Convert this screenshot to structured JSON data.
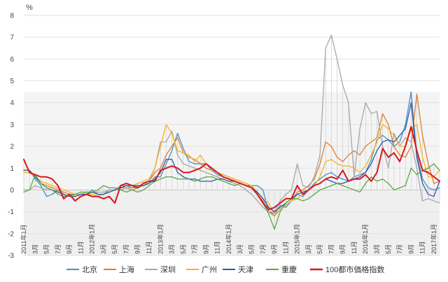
{
  "chart_data": {
    "type": "line",
    "ylabel": "%",
    "ylim": [
      -3,
      8
    ],
    "yticks": [
      -3,
      -2,
      -1,
      0,
      1,
      2,
      3,
      4,
      5,
      6,
      7,
      8
    ],
    "x_range": [
      0,
      73
    ],
    "x_ticks": [
      {
        "i": 0,
        "label": "2011年1月"
      },
      {
        "i": 2,
        "label": "3月"
      },
      {
        "i": 4,
        "label": "5月"
      },
      {
        "i": 6,
        "label": "7月"
      },
      {
        "i": 8,
        "label": "9月"
      },
      {
        "i": 10,
        "label": "11月"
      },
      {
        "i": 12,
        "label": "2012年1月"
      },
      {
        "i": 14,
        "label": "3月"
      },
      {
        "i": 16,
        "label": "5月"
      },
      {
        "i": 18,
        "label": "7月"
      },
      {
        "i": 20,
        "label": "9月"
      },
      {
        "i": 22,
        "label": "11月"
      },
      {
        "i": 24,
        "label": "2013年1月"
      },
      {
        "i": 26,
        "label": "3月"
      },
      {
        "i": 28,
        "label": "5月"
      },
      {
        "i": 30,
        "label": "7月"
      },
      {
        "i": 32,
        "label": "9月"
      },
      {
        "i": 34,
        "label": "11月"
      },
      {
        "i": 36,
        "label": "2014年1月"
      },
      {
        "i": 38,
        "label": "3月"
      },
      {
        "i": 40,
        "label": "5月"
      },
      {
        "i": 42,
        "label": "7月"
      },
      {
        "i": 44,
        "label": "9月"
      },
      {
        "i": 46,
        "label": "11月"
      },
      {
        "i": 48,
        "label": "2015年1月"
      },
      {
        "i": 50,
        "label": "3月"
      },
      {
        "i": 52,
        "label": "5月"
      },
      {
        "i": 54,
        "label": "7月"
      },
      {
        "i": 56,
        "label": "9月"
      },
      {
        "i": 58,
        "label": "11月"
      },
      {
        "i": 60,
        "label": "2016年1月"
      },
      {
        "i": 62,
        "label": "3月"
      },
      {
        "i": 64,
        "label": "5月"
      },
      {
        "i": 66,
        "label": "7月"
      },
      {
        "i": 68,
        "label": "9月"
      },
      {
        "i": 70,
        "label": "11月"
      },
      {
        "i": 72,
        "label": "2017年1月"
      }
    ],
    "legend_position": "bottom",
    "series": [
      {
        "name": "北京",
        "color": "#4a90c4",
        "width": 1.3,
        "values": [
          0.9,
          0.9,
          0.5,
          0.2,
          -0.3,
          -0.2,
          0.0,
          -0.2,
          -0.3,
          -0.2,
          -0.2,
          -0.2,
          0.0,
          -0.2,
          -0.2,
          0.0,
          0.0,
          0.2,
          0.2,
          0.1,
          0.2,
          0.2,
          0.3,
          0.6,
          0.6,
          1.2,
          1.8,
          2.6,
          1.9,
          1.3,
          1.2,
          1.2,
          1.2,
          0.9,
          0.7,
          0.6,
          0.5,
          0.4,
          0.3,
          0.2,
          0.2,
          0.2,
          0.0,
          -1.0,
          -1.1,
          -0.7,
          -0.8,
          -0.5,
          -0.2,
          -0.3,
          0.0,
          0.3,
          0.5,
          0.7,
          0.8,
          0.6,
          0.5,
          0.4,
          0.6,
          0.7,
          0.8,
          1.4,
          2.3,
          2.5,
          2.3,
          2.0,
          2.2,
          3.0,
          4.5,
          1.6,
          0.5,
          0.1,
          0.0,
          0.1
        ]
      },
      {
        "name": "上海",
        "color": "#e07e2e",
        "width": 1.3,
        "values": [
          0.8,
          0.8,
          0.6,
          0.3,
          0.2,
          0.1,
          0.0,
          -0.1,
          -0.2,
          -0.3,
          -0.2,
          -0.2,
          -0.1,
          -0.2,
          -0.2,
          -0.1,
          0.0,
          0.1,
          0.1,
          0.0,
          0.1,
          0.2,
          0.4,
          0.8,
          1.0,
          1.6,
          2.0,
          2.4,
          1.7,
          1.5,
          1.4,
          1.2,
          1.0,
          0.9,
          0.8,
          0.7,
          0.6,
          0.5,
          0.4,
          0.3,
          0.2,
          -0.2,
          -0.5,
          -1.0,
          -1.2,
          -0.9,
          -0.7,
          -0.5,
          -0.1,
          0.0,
          0.2,
          0.5,
          1.2,
          2.2,
          2.0,
          1.5,
          1.3,
          1.6,
          1.8,
          1.6,
          2.0,
          2.2,
          2.4,
          3.5,
          3.0,
          2.0,
          1.6,
          1.5,
          2.0,
          4.4,
          2.5,
          1.2,
          0.3,
          0.4
        ]
      },
      {
        "name": "深圳",
        "color": "#a8a8a8",
        "width": 1.3,
        "values": [
          0.0,
          0.0,
          0.2,
          0.1,
          0.0,
          0.0,
          -0.1,
          -0.2,
          -0.3,
          -0.2,
          -0.2,
          -0.1,
          -0.1,
          -0.1,
          -0.1,
          0.0,
          0.0,
          0.0,
          0.1,
          0.1,
          0.1,
          0.2,
          0.4,
          1.0,
          2.2,
          2.2,
          2.7,
          1.6,
          1.2,
          1.1,
          1.0,
          0.9,
          0.8,
          0.7,
          0.6,
          0.5,
          0.4,
          0.3,
          0.2,
          0.0,
          -0.2,
          -0.5,
          -0.8,
          -1.0,
          -1.0,
          -0.5,
          -0.2,
          0.0,
          1.2,
          0.2,
          0.1,
          0.6,
          1.6,
          6.5,
          7.1,
          6.0,
          4.8,
          4.0,
          0.6,
          2.8,
          4.0,
          3.5,
          3.6,
          2.0,
          1.0,
          2.6,
          2.0,
          2.4,
          2.2,
          1.0,
          -0.5,
          -0.4,
          -0.5,
          -0.6
        ]
      },
      {
        "name": "广州",
        "color": "#f5b323",
        "width": 1.3,
        "values": [
          0.8,
          0.8,
          0.6,
          0.4,
          0.3,
          0.2,
          0.1,
          0.0,
          -0.1,
          -0.2,
          -0.3,
          -0.2,
          -0.2,
          -0.3,
          -0.2,
          -0.1,
          0.0,
          0.1,
          0.2,
          0.2,
          0.3,
          0.4,
          0.5,
          1.0,
          2.0,
          3.0,
          2.6,
          1.8,
          1.7,
          1.6,
          1.3,
          1.6,
          1.2,
          1.0,
          0.8,
          0.7,
          0.6,
          0.5,
          0.4,
          0.3,
          0.2,
          -0.1,
          -0.4,
          -0.6,
          -1.1,
          -0.9,
          -0.7,
          -0.5,
          -0.4,
          -0.2,
          0.0,
          0.2,
          0.6,
          1.3,
          1.4,
          1.2,
          1.1,
          1.1,
          1.0,
          0.8,
          1.1,
          1.6,
          2.2,
          3.0,
          2.8,
          2.5,
          2.0,
          2.0,
          2.8,
          3.0,
          1.5,
          0.6,
          0.6,
          0.9
        ]
      },
      {
        "name": "天津",
        "color": "#2e5aa8",
        "width": 1.3,
        "values": [
          0.9,
          0.9,
          0.6,
          0.3,
          0.1,
          0.0,
          -0.1,
          -0.2,
          -0.3,
          -0.3,
          -0.2,
          -0.2,
          -0.1,
          -0.2,
          -0.2,
          -0.1,
          0.0,
          0.1,
          0.2,
          0.2,
          0.2,
          0.2,
          0.3,
          0.5,
          0.8,
          1.4,
          1.4,
          0.8,
          0.6,
          0.5,
          0.5,
          0.4,
          0.4,
          0.4,
          0.5,
          0.5,
          0.4,
          0.4,
          0.3,
          0.2,
          0.1,
          -0.1,
          -0.4,
          -0.8,
          -1.0,
          -0.8,
          -0.6,
          -0.4,
          -0.2,
          -0.1,
          0.0,
          0.2,
          0.3,
          0.5,
          0.4,
          0.3,
          0.3,
          0.4,
          0.5,
          0.6,
          0.8,
          1.2,
          1.8,
          2.2,
          2.3,
          2.2,
          2.5,
          2.8,
          4.0,
          1.5,
          0.3,
          -0.2,
          -0.3,
          0.4
        ]
      },
      {
        "name": "重慶",
        "color": "#5aa843",
        "width": 1.3,
        "values": [
          -0.1,
          0.0,
          0.7,
          0.3,
          0.1,
          0.0,
          -0.2,
          -0.3,
          -0.2,
          -0.2,
          -0.1,
          -0.1,
          -0.1,
          0.0,
          0.2,
          0.1,
          0.1,
          0.0,
          -0.1,
          0.0,
          -0.1,
          0.0,
          0.2,
          0.4,
          0.5,
          0.6,
          0.6,
          0.5,
          0.5,
          0.5,
          0.4,
          0.5,
          0.6,
          0.6,
          0.5,
          0.4,
          0.3,
          0.2,
          0.3,
          0.2,
          0.1,
          -0.2,
          -0.6,
          -1.1,
          -1.8,
          -1.0,
          -0.6,
          -0.4,
          -0.4,
          -0.5,
          -0.4,
          -0.2,
          0.0,
          0.1,
          0.2,
          0.3,
          0.2,
          0.1,
          0.0,
          -0.1,
          0.3,
          0.6,
          0.4,
          0.5,
          0.3,
          0.0,
          0.1,
          0.2,
          1.0,
          0.7,
          0.9,
          1.0,
          1.2,
          0.9
        ]
      },
      {
        "name": "100都市価格指数",
        "color": "#d7191c",
        "width": 2.0,
        "values": [
          1.4,
          0.8,
          0.7,
          0.6,
          0.6,
          0.5,
          0.2,
          -0.4,
          -0.2,
          -0.5,
          -0.3,
          -0.2,
          -0.3,
          -0.3,
          -0.4,
          -0.3,
          -0.6,
          0.2,
          0.3,
          0.2,
          0.1,
          0.3,
          0.4,
          0.4,
          0.9,
          1.0,
          1.1,
          1.0,
          0.8,
          0.8,
          0.9,
          1.0,
          1.2,
          1.0,
          0.8,
          0.6,
          0.5,
          0.4,
          0.3,
          0.2,
          0.1,
          -0.2,
          -0.6,
          -0.9,
          -0.8,
          -0.6,
          -0.4,
          -0.4,
          0.2,
          -0.2,
          0.0,
          0.2,
          0.3,
          0.5,
          0.6,
          0.5,
          0.9,
          0.4,
          0.5,
          0.5,
          0.7,
          0.4,
          0.8,
          1.9,
          1.5,
          1.7,
          1.3,
          2.0,
          2.9,
          1.8,
          0.9,
          0.8,
          0.6,
          0.4
        ]
      }
    ]
  }
}
